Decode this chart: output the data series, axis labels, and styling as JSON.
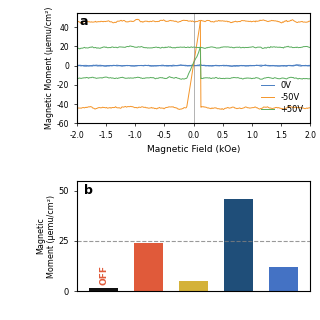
{
  "top_panel": {
    "label": "a",
    "ylabel": "Magnetic Moment (μemu/cm²)",
    "xlabel": "Magnetic Field (kOe)",
    "xlim": [
      -2.0,
      2.0
    ],
    "ylim": [
      -60,
      55
    ],
    "yticks": [
      -60,
      -40,
      -20,
      0,
      20,
      40
    ],
    "xticks": [
      -2.0,
      -1.5,
      -1.0,
      -0.5,
      0.0,
      0.5,
      1.0,
      1.5,
      2.0
    ],
    "xtick_labels": [
      "-2.0",
      "-1.5",
      "-1.0",
      "-0.5",
      "0.0",
      "0.5",
      "1.0",
      "1.5",
      "2.0"
    ],
    "vline_x": 0.0,
    "line_colors": {
      "0V": "#4a7ec2",
      "-50V": "#f4952a",
      "+50V": "#5aad5e"
    }
  },
  "bottom_panel": {
    "label": "b",
    "ylabel": "Magnetic\nMoment (μemu/cm²)",
    "ylim": [
      0,
      55
    ],
    "yticks": [
      0,
      25,
      50
    ],
    "dashed_line_y": 25,
    "bar_values": [
      1.5,
      24,
      5,
      46,
      12
    ],
    "bar_colors": [
      "#111111",
      "#e05a3a",
      "#d4b23a",
      "#1f4e79",
      "#4472c4"
    ],
    "off_label": "OFF",
    "off_label_color": "#e05a3a",
    "bar_width": 0.65
  }
}
